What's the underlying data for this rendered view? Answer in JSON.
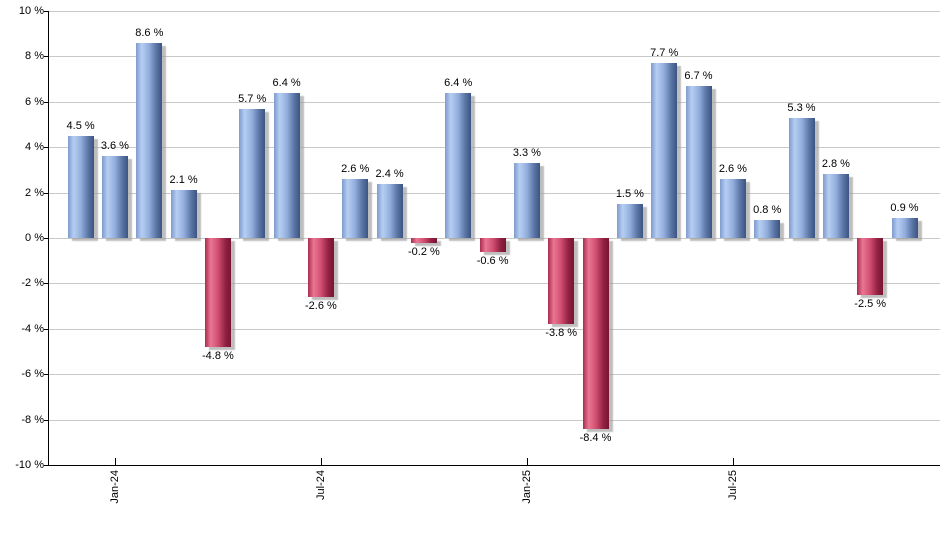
{
  "chart_data": {
    "type": "bar",
    "title": "",
    "xlabel": "",
    "ylabel": "",
    "ylim": [
      -10,
      10
    ],
    "y_tick_step": 2,
    "grid": true,
    "legend": "none",
    "y_tick_labels": [
      "10 %",
      "8 %",
      "6 %",
      "4 %",
      "2 %",
      "0 %",
      "-2 %",
      "-4 %",
      "-6 %",
      "-8 %",
      "-10 %"
    ],
    "y_tick_values": [
      10,
      8,
      6,
      4,
      2,
      0,
      -2,
      -4,
      -6,
      -8,
      -10
    ],
    "x_tick_labels": [
      {
        "label": "Jan-24",
        "index": 1
      },
      {
        "label": "Jul-24",
        "index": 7
      },
      {
        "label": "Jan-25",
        "index": 13
      },
      {
        "label": "Jul-25",
        "index": 19
      }
    ],
    "bars": [
      {
        "month": "Dec-23",
        "value": 4.5,
        "label": "4.5 %"
      },
      {
        "month": "Jan-24",
        "value": 3.6,
        "label": "3.6 %"
      },
      {
        "month": "Feb-24",
        "value": 8.6,
        "label": "8.6 %"
      },
      {
        "month": "Mar-24",
        "value": 2.1,
        "label": "2.1 %"
      },
      {
        "month": "Apr-24",
        "value": -4.8,
        "label": "-4.8 %"
      },
      {
        "month": "May-24",
        "value": 5.7,
        "label": "5.7 %"
      },
      {
        "month": "Jun-24",
        "value": 6.4,
        "label": "6.4 %"
      },
      {
        "month": "Jul-24",
        "value": -2.6,
        "label": "-2.6 %"
      },
      {
        "month": "Aug-24",
        "value": 2.6,
        "label": "2.6 %"
      },
      {
        "month": "Sep-24",
        "value": 2.4,
        "label": "2.4 %"
      },
      {
        "month": "Oct-24",
        "value": -0.2,
        "label": "-0.2 %"
      },
      {
        "month": "Nov-24",
        "value": 6.4,
        "label": "6.4 %"
      },
      {
        "month": "Dec-24",
        "value": -0.6,
        "label": "-0.6 %"
      },
      {
        "month": "Jan-25",
        "value": 3.3,
        "label": "3.3 %"
      },
      {
        "month": "Feb-25",
        "value": -3.8,
        "label": "-3.8 %"
      },
      {
        "month": "Mar-25",
        "value": -8.4,
        "label": "-8.4 %"
      },
      {
        "month": "Apr-25",
        "value": 1.5,
        "label": "1.5 %"
      },
      {
        "month": "May-25",
        "value": 7.7,
        "label": "7.7 %"
      },
      {
        "month": "Jun-25",
        "value": 6.7,
        "label": "6.7 %"
      },
      {
        "month": "Jul-25",
        "value": 2.6,
        "label": "2.6 %"
      },
      {
        "month": "Aug-25",
        "value": 0.8,
        "label": "0.8 %"
      },
      {
        "month": "Sep-25",
        "value": 5.3,
        "label": "5.3 %"
      },
      {
        "month": "Oct-25",
        "value": 2.8,
        "label": "2.8 %"
      },
      {
        "month": "Nov-25",
        "value": -2.5,
        "label": "-2.5 %"
      },
      {
        "month": "Dec-25",
        "value": 0.9,
        "label": "0.9 %"
      }
    ],
    "colors": {
      "positive_bar_base": "#6f8fc5",
      "negative_bar_base": "#c43a5e",
      "positive_gradient": [
        "#7e9bcc",
        "#b6cef2",
        "#92aedd",
        "#5a74a4",
        "#3a5582"
      ],
      "negative_gradient": [
        "#aa2b4f",
        "#ea7694",
        "#d14e70",
        "#922244",
        "#771430"
      ],
      "gridline": "#c9c9c9",
      "axis": "#000000",
      "shadow": "#9b9b9b",
      "label_text": "#000000",
      "background": "#ffffff"
    }
  }
}
